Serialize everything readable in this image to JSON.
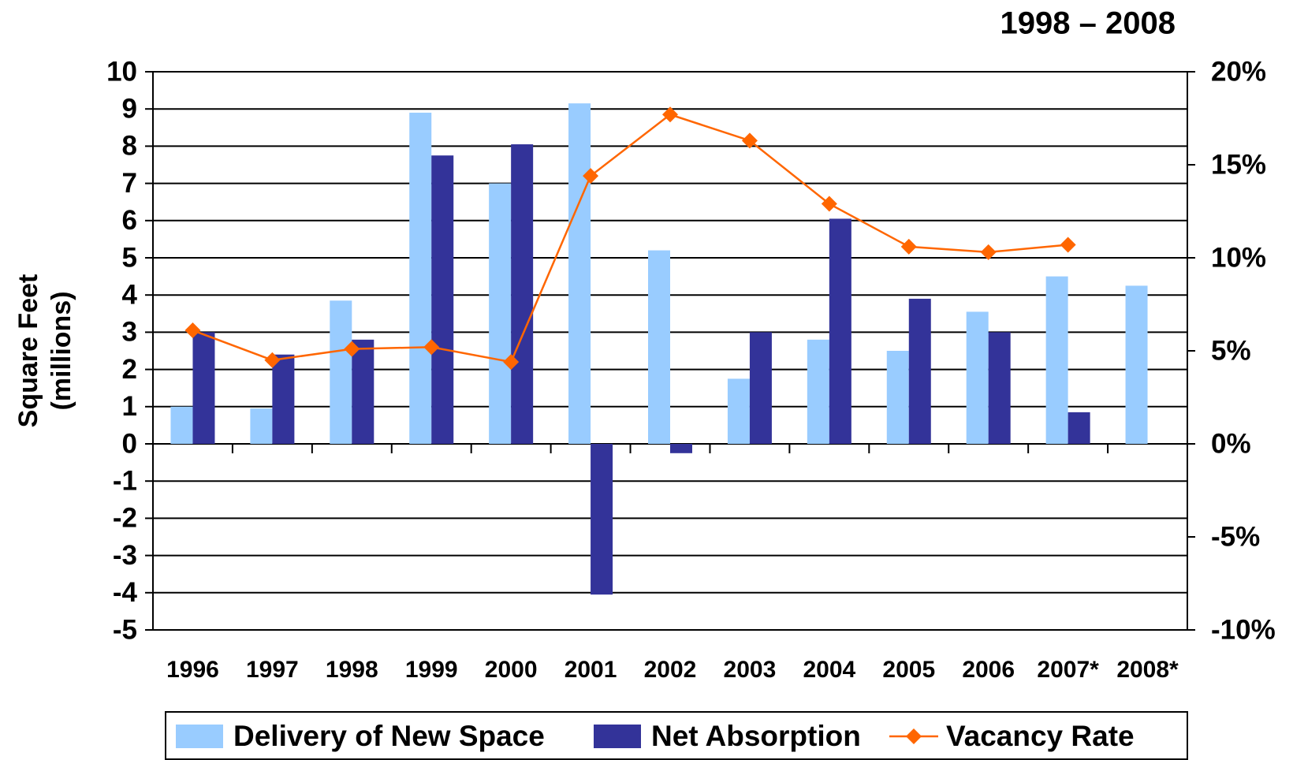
{
  "chart_data": {
    "type": "bar",
    "title": "1998 – 2008",
    "ylabel": [
      "Square Feet",
      "(millions)"
    ],
    "categories": [
      "1996",
      "1997",
      "1998",
      "1999",
      "2000",
      "2001",
      "2002",
      "2003",
      "2004",
      "2005",
      "2006",
      "2007*",
      "2008*"
    ],
    "series": [
      {
        "name": "Delivery of New Space",
        "color": "#99ccff",
        "type": "bar",
        "values": [
          1.0,
          0.95,
          3.85,
          8.9,
          7.0,
          9.15,
          5.2,
          1.75,
          2.8,
          2.5,
          3.55,
          4.5,
          4.25
        ]
      },
      {
        "name": "Net Absorption",
        "color": "#333399",
        "type": "bar",
        "values": [
          3.0,
          2.4,
          2.8,
          7.75,
          8.05,
          -4.05,
          -0.25,
          3.0,
          6.05,
          3.9,
          3.0,
          0.85,
          null
        ]
      },
      {
        "name": "Vacancy Rate",
        "color": "#ff6600",
        "type": "line",
        "axis": "y2",
        "values": [
          6.1,
          4.5,
          5.1,
          5.2,
          4.4,
          14.4,
          17.7,
          16.3,
          12.9,
          10.6,
          10.3,
          10.7,
          null
        ]
      }
    ],
    "ylim": [
      -5,
      10
    ],
    "yticks": [
      -5,
      -4,
      -3,
      -2,
      -1,
      0,
      1,
      2,
      3,
      4,
      5,
      6,
      7,
      8,
      9,
      10
    ],
    "y2lim": [
      -10,
      20
    ],
    "y2ticks": [
      {
        "value": -10,
        "label": "-10%"
      },
      {
        "value": -5,
        "label": "-5%"
      },
      {
        "value": 0,
        "label": "0%"
      },
      {
        "value": 5,
        "label": "5%"
      },
      {
        "value": 10,
        "label": "10%"
      },
      {
        "value": 15,
        "label": "15%"
      },
      {
        "value": 20,
        "label": "20%"
      }
    ],
    "grid": true,
    "legend": "bottom"
  }
}
